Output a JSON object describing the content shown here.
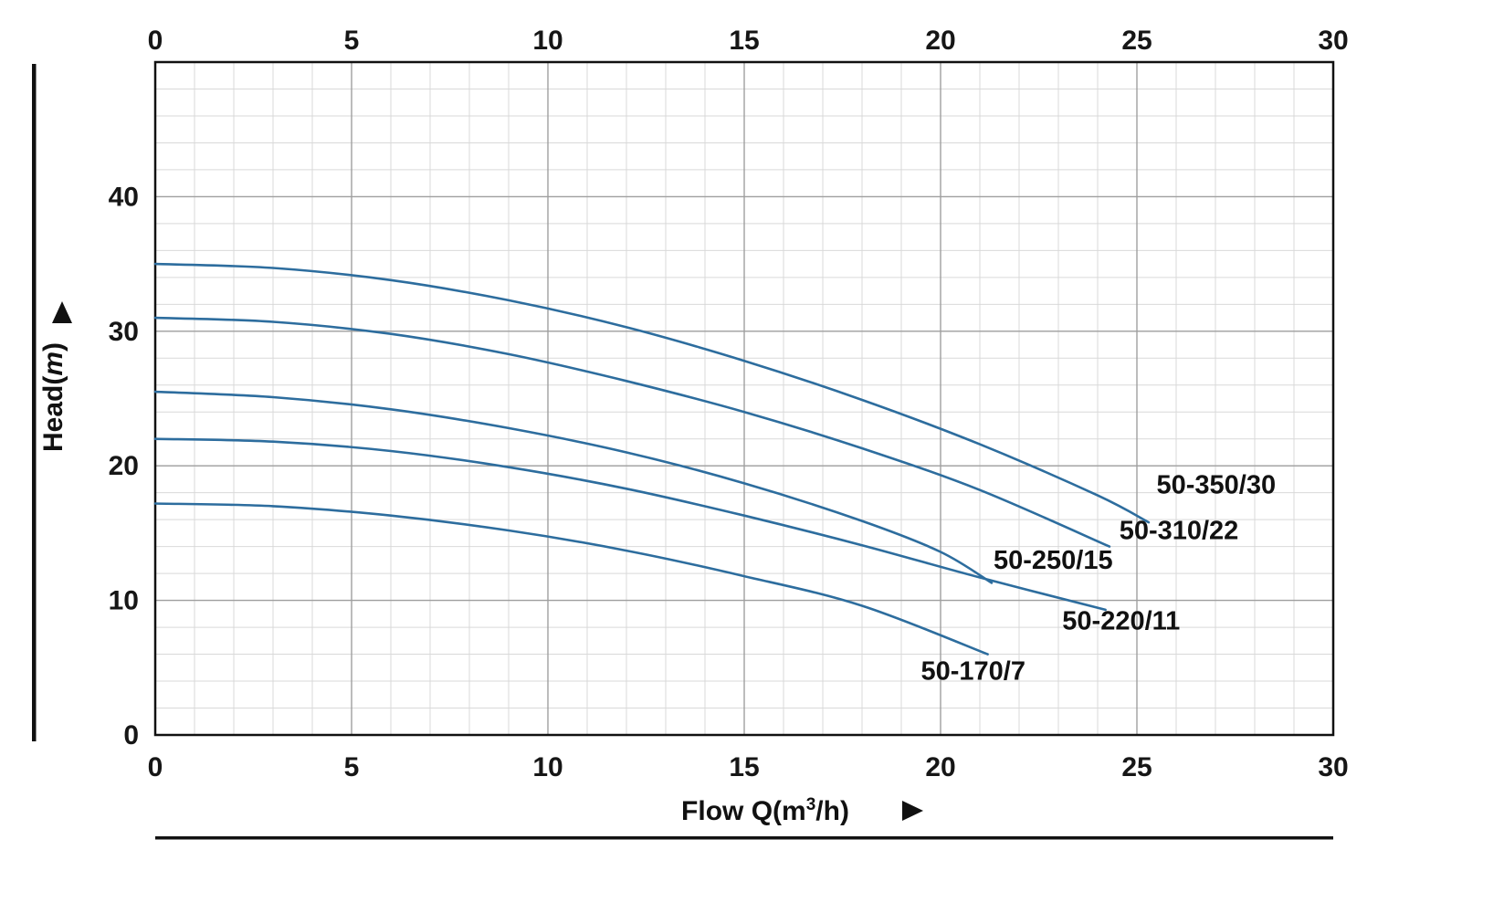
{
  "page": {
    "background": "#ffffff"
  },
  "chart_data": {
    "type": "line",
    "title": "",
    "xlabel": "Flow Q(m³/h)",
    "ylabel": "Head(m)",
    "legend_position": "inline-curve-end-labels",
    "grid": true,
    "x_axis": {
      "min": 0,
      "max": 30,
      "ticks": [
        0,
        5,
        10,
        15,
        20,
        25,
        30
      ],
      "minor_step": 1,
      "label_sides": [
        "top",
        "bottom"
      ]
    },
    "y_axis": {
      "min": 0,
      "max": 50,
      "ticks": [
        0,
        10,
        20,
        30,
        40
      ],
      "minor_step": 2,
      "label_sides": [
        "left"
      ]
    },
    "colors": {
      "curve": "#2d6d9e",
      "grid_minor": "#d9d9d9",
      "grid_major": "#9f9f9f",
      "frame": "#111111",
      "text": "#161616"
    },
    "series": [
      {
        "name": "50-350/30",
        "points": [
          [
            0,
            35
          ],
          [
            3,
            34.7
          ],
          [
            6,
            33.8
          ],
          [
            9,
            32.3
          ],
          [
            12,
            30.3
          ],
          [
            15,
            27.8
          ],
          [
            18,
            24.9
          ],
          [
            21,
            21.6
          ],
          [
            24,
            17.8
          ],
          [
            25.3,
            15.8
          ]
        ],
        "label_pos": [
          25.5,
          17.95
        ]
      },
      {
        "name": "50-310/22",
        "points": [
          [
            0,
            31
          ],
          [
            3,
            30.7
          ],
          [
            6,
            29.8
          ],
          [
            9,
            28.3
          ],
          [
            12,
            26.3
          ],
          [
            15,
            24.0
          ],
          [
            18,
            21.3
          ],
          [
            21,
            18.2
          ],
          [
            24.3,
            14.0
          ]
        ],
        "label_pos": [
          24.55,
          14.55
        ]
      },
      {
        "name": "50-250/15",
        "points": [
          [
            0,
            25.5
          ],
          [
            3,
            25.1
          ],
          [
            6,
            24.2
          ],
          [
            9,
            22.8
          ],
          [
            12,
            21.0
          ],
          [
            15,
            18.7
          ],
          [
            18,
            15.9
          ],
          [
            20,
            13.6
          ],
          [
            21.3,
            11.3
          ]
        ],
        "label_pos": [
          21.35,
          12.35
        ]
      },
      {
        "name": "50-220/11",
        "points": [
          [
            0,
            22
          ],
          [
            3,
            21.8
          ],
          [
            6,
            21.1
          ],
          [
            9,
            19.9
          ],
          [
            12,
            18.3
          ],
          [
            15,
            16.3
          ],
          [
            18,
            14.1
          ],
          [
            21,
            11.7
          ],
          [
            24.2,
            9.3
          ]
        ],
        "label_pos": [
          23.1,
          7.85
        ]
      },
      {
        "name": "50-170/7",
        "points": [
          [
            0,
            17.2
          ],
          [
            3,
            17.0
          ],
          [
            6,
            16.3
          ],
          [
            9,
            15.2
          ],
          [
            12,
            13.7
          ],
          [
            15,
            11.8
          ],
          [
            18,
            9.6
          ],
          [
            21.2,
            6.0
          ]
        ],
        "label_pos": [
          19.5,
          4.1
        ]
      }
    ],
    "icons": {
      "y_axis_arrow": "up-arrow-icon",
      "x_axis_arrow": "right-arrow-icon"
    }
  }
}
